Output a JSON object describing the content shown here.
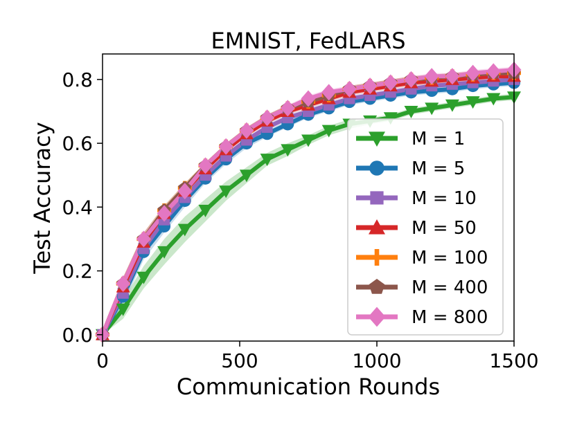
{
  "chart_data": {
    "type": "line",
    "title": "EMNIST, FedLARS",
    "xlabel": "Communication Rounds",
    "ylabel": "Test Accuracy",
    "xlim": [
      0,
      1500
    ],
    "ylim": [
      -0.02,
      0.88
    ],
    "xticks": [
      0,
      500,
      1000,
      1500
    ],
    "yticks": [
      0.0,
      0.2,
      0.4,
      0.6,
      0.8
    ],
    "xtick_labels": [
      "0",
      "500",
      "1000",
      "1500"
    ],
    "ytick_labels": [
      "0.0",
      "0.2",
      "0.4",
      "0.6",
      "0.8"
    ],
    "grid": false,
    "legend_position": "lower-right",
    "x": [
      0,
      75,
      150,
      225,
      300,
      375,
      450,
      525,
      600,
      675,
      750,
      825,
      900,
      975,
      1050,
      1125,
      1200,
      1275,
      1350,
      1425,
      1500
    ],
    "series": [
      {
        "name": "M = 1",
        "color": "#2ca02c",
        "marker": "triangle-down",
        "values": [
          0.0,
          0.08,
          0.18,
          0.26,
          0.33,
          0.39,
          0.45,
          0.5,
          0.55,
          0.58,
          0.61,
          0.64,
          0.66,
          0.67,
          0.68,
          0.7,
          0.71,
          0.72,
          0.73,
          0.74,
          0.745
        ],
        "band": [
          0.0,
          0.03,
          0.035,
          0.04,
          0.04,
          0.035,
          0.03,
          0.025,
          0.02,
          0.02,
          0.015,
          0.015,
          0.015,
          0.01,
          0.01,
          0.01,
          0.01,
          0.01,
          0.01,
          0.01,
          0.01
        ]
      },
      {
        "name": "M = 5",
        "color": "#1f77b4",
        "marker": "circle",
        "values": [
          0.0,
          0.12,
          0.26,
          0.34,
          0.42,
          0.49,
          0.55,
          0.6,
          0.63,
          0.66,
          0.69,
          0.71,
          0.73,
          0.74,
          0.75,
          0.76,
          0.765,
          0.77,
          0.78,
          0.785,
          0.79
        ],
        "band": [
          0.0,
          0.025,
          0.025,
          0.02,
          0.02,
          0.015,
          0.015,
          0.015,
          0.01,
          0.01,
          0.01,
          0.01,
          0.01,
          0.01,
          0.01,
          0.01,
          0.01,
          0.01,
          0.01,
          0.01,
          0.01
        ]
      },
      {
        "name": "M = 10",
        "color": "#9467bd",
        "marker": "square",
        "values": [
          0.0,
          0.13,
          0.27,
          0.36,
          0.43,
          0.5,
          0.56,
          0.61,
          0.65,
          0.68,
          0.7,
          0.72,
          0.74,
          0.75,
          0.76,
          0.77,
          0.78,
          0.785,
          0.79,
          0.795,
          0.8
        ],
        "band": [
          0.0,
          0.02,
          0.02,
          0.02,
          0.015,
          0.015,
          0.01,
          0.01,
          0.01,
          0.01,
          0.01,
          0.01,
          0.01,
          0.01,
          0.01,
          0.01,
          0.01,
          0.01,
          0.01,
          0.01,
          0.01
        ]
      },
      {
        "name": "M = 50",
        "color": "#d62728",
        "marker": "triangle-up",
        "values": [
          0.0,
          0.15,
          0.29,
          0.38,
          0.45,
          0.52,
          0.58,
          0.63,
          0.67,
          0.7,
          0.72,
          0.74,
          0.76,
          0.77,
          0.78,
          0.79,
          0.795,
          0.8,
          0.805,
          0.81,
          0.81
        ],
        "band": [
          0.0,
          0.02,
          0.02,
          0.015,
          0.015,
          0.01,
          0.01,
          0.01,
          0.01,
          0.01,
          0.01,
          0.01,
          0.01,
          0.01,
          0.01,
          0.01,
          0.01,
          0.01,
          0.01,
          0.01,
          0.01
        ]
      },
      {
        "name": "M = 100",
        "color": "#ff7f0e",
        "marker": "plus",
        "values": [
          0.0,
          0.16,
          0.3,
          0.39,
          0.46,
          0.53,
          0.59,
          0.64,
          0.68,
          0.71,
          0.73,
          0.75,
          0.77,
          0.78,
          0.79,
          0.8,
          0.805,
          0.81,
          0.815,
          0.82,
          0.82
        ],
        "band": [
          0.0,
          0.02,
          0.02,
          0.015,
          0.015,
          0.01,
          0.01,
          0.01,
          0.01,
          0.01,
          0.01,
          0.01,
          0.01,
          0.01,
          0.01,
          0.01,
          0.01,
          0.01,
          0.01,
          0.01,
          0.01
        ]
      },
      {
        "name": "M = 400",
        "color": "#8c564b",
        "marker": "pentagon",
        "values": [
          0.0,
          0.16,
          0.3,
          0.39,
          0.46,
          0.53,
          0.59,
          0.64,
          0.68,
          0.71,
          0.73,
          0.75,
          0.77,
          0.78,
          0.79,
          0.8,
          0.805,
          0.81,
          0.815,
          0.82,
          0.82
        ],
        "band": [
          0.0,
          0.02,
          0.02,
          0.015,
          0.015,
          0.01,
          0.01,
          0.01,
          0.01,
          0.01,
          0.01,
          0.01,
          0.01,
          0.01,
          0.01,
          0.01,
          0.01,
          0.01,
          0.01,
          0.01,
          0.01
        ]
      },
      {
        "name": "M = 800",
        "color": "#e377c2",
        "marker": "diamond",
        "values": [
          0.0,
          0.16,
          0.3,
          0.38,
          0.45,
          0.53,
          0.59,
          0.64,
          0.68,
          0.71,
          0.74,
          0.76,
          0.77,
          0.78,
          0.79,
          0.8,
          0.81,
          0.81,
          0.82,
          0.825,
          0.83
        ],
        "band": [
          0.0,
          0.02,
          0.02,
          0.015,
          0.015,
          0.01,
          0.01,
          0.01,
          0.01,
          0.01,
          0.01,
          0.01,
          0.01,
          0.01,
          0.01,
          0.01,
          0.01,
          0.01,
          0.01,
          0.01,
          0.01
        ]
      }
    ]
  }
}
